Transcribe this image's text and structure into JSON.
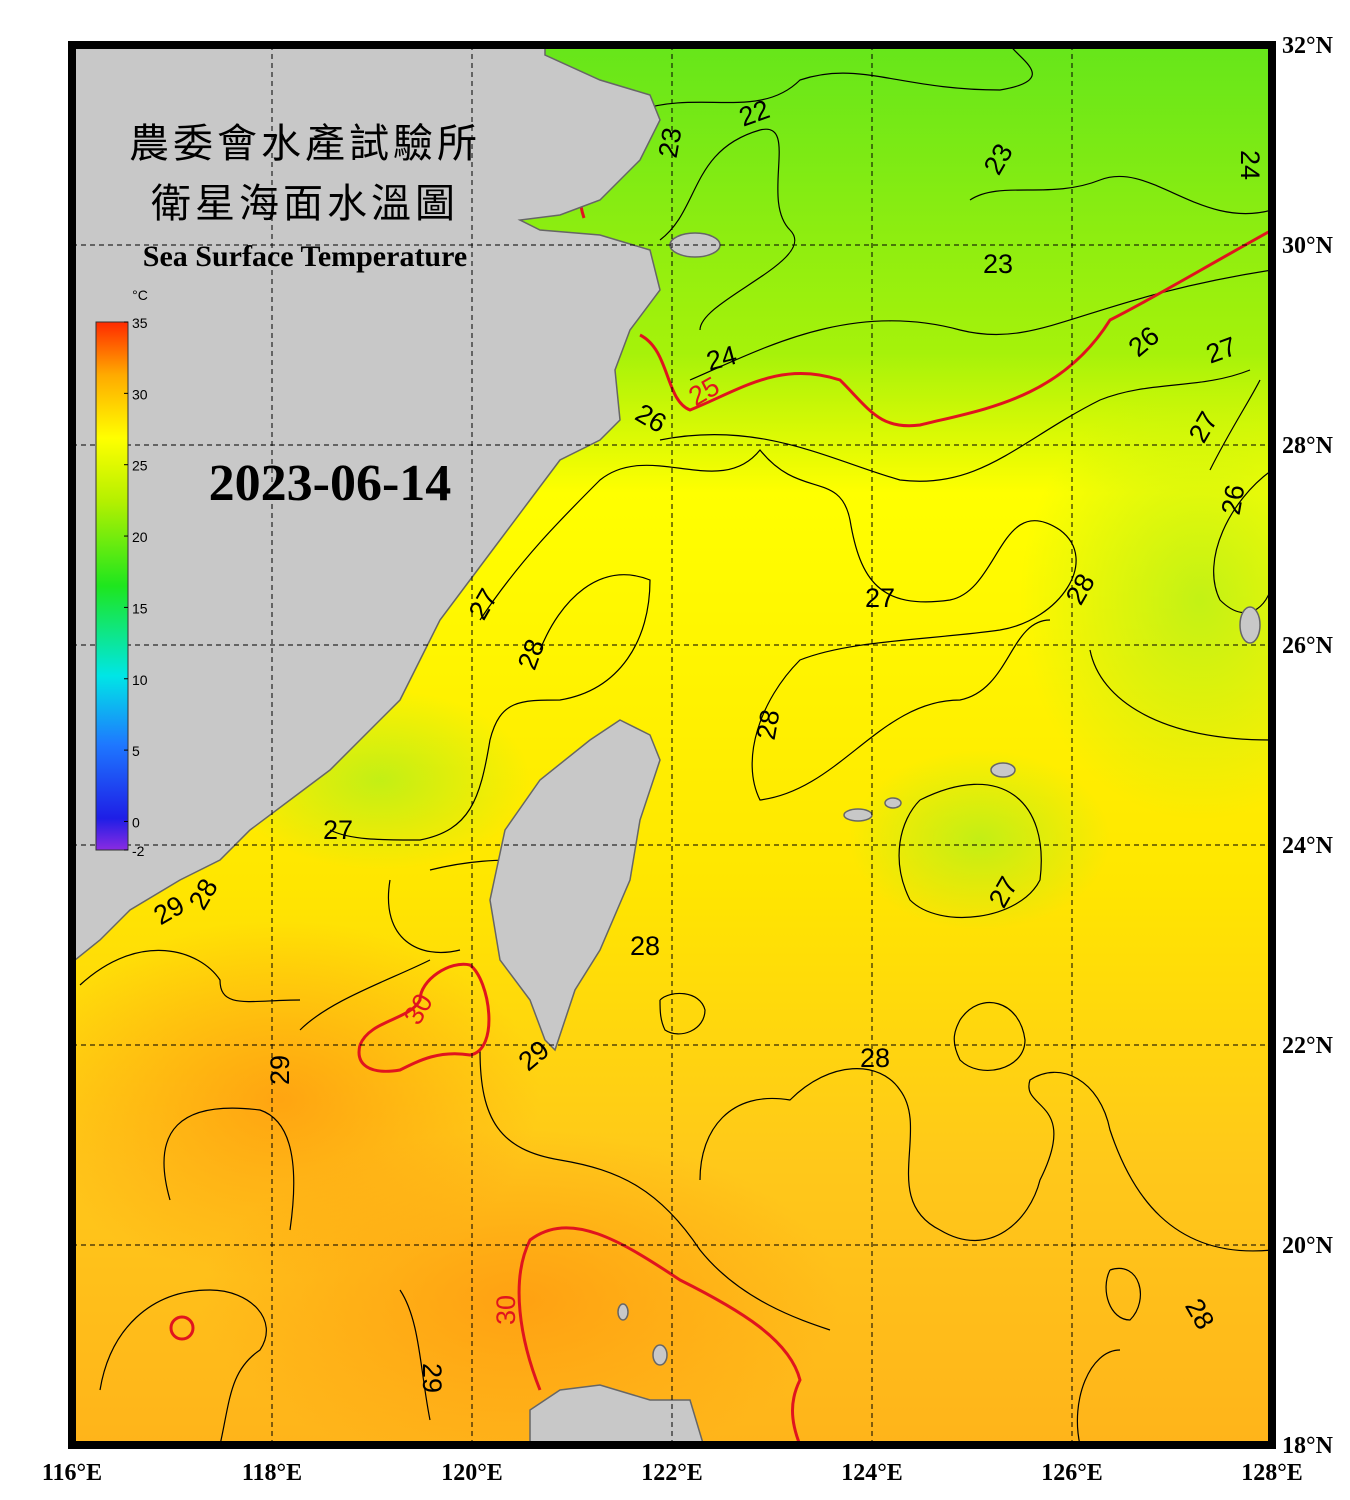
{
  "header": {
    "title_zh_1": "農委會水產試驗所",
    "title_zh_2": "衛星海面水溫圖",
    "title_en": "Sea Surface Temperature",
    "date": "2023-06-14"
  },
  "colorbar": {
    "unit": "°C",
    "range": [
      -2,
      35
    ],
    "ticks": [
      35,
      30,
      25,
      20,
      15,
      10,
      5,
      0,
      -2
    ]
  },
  "lon_labels": [
    {
      "value": 116,
      "label": "116°E"
    },
    {
      "value": 118,
      "label": "118°E"
    },
    {
      "value": 120,
      "label": "120°E"
    },
    {
      "value": 122,
      "label": "122°E"
    },
    {
      "value": 124,
      "label": "124°E"
    },
    {
      "value": 126,
      "label": "126°E"
    },
    {
      "value": 128,
      "label": "128°E"
    }
  ],
  "lat_labels": [
    {
      "value": 32,
      "label": "32°N"
    },
    {
      "value": 30,
      "label": "30°N"
    },
    {
      "value": 28,
      "label": "28°N"
    },
    {
      "value": 26,
      "label": "26°N"
    },
    {
      "value": 24,
      "label": "24°N"
    },
    {
      "value": 22,
      "label": "22°N"
    },
    {
      "value": 20,
      "label": "20°N"
    },
    {
      "value": 18,
      "label": "18°N"
    }
  ],
  "contour_labels": [
    "22",
    "23",
    "23",
    "24",
    "23",
    "26",
    "27",
    "24",
    "25",
    "26",
    "27",
    "26",
    "27",
    "28",
    "27",
    "28",
    "28",
    "27",
    "27",
    "29",
    "28",
    "28",
    "30",
    "29",
    "28",
    "29",
    "30",
    "28",
    "29"
  ]
}
